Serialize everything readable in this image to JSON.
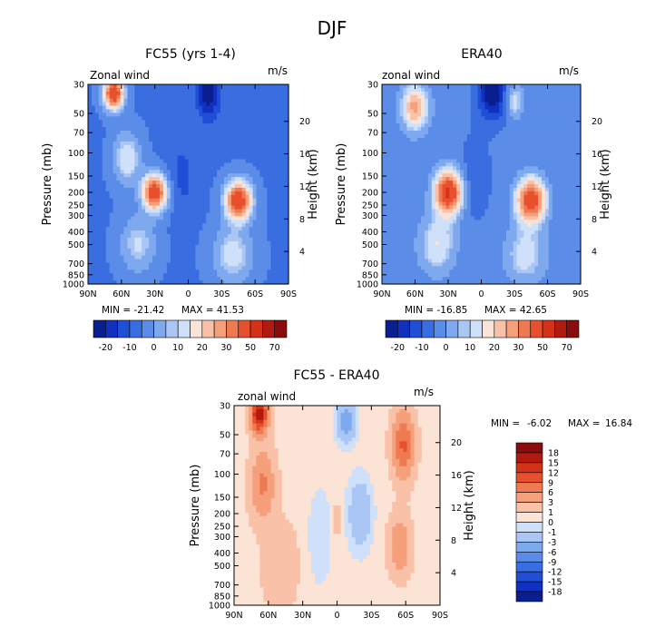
{
  "figure": {
    "title": "DJF"
  },
  "chart_data": [
    {
      "type": "heatmap",
      "id": "fc55",
      "title": "FC55 (yrs 1-4)",
      "field_label": "Zonal wind",
      "units": "m/s",
      "ylabel": "Pressure (mb)",
      "y2label": "Height (km)",
      "x_ticks": [
        "90N",
        "60N",
        "30N",
        "0",
        "30S",
        "60S",
        "90S"
      ],
      "x_range": [
        90,
        -90
      ],
      "p_ticks": [
        "30",
        "50",
        "70",
        "100",
        "150",
        "200",
        "250",
        "300",
        "400",
        "500",
        "700",
        "850",
        "1000"
      ],
      "p_range_mb": [
        30,
        1000
      ],
      "z_ticks": [
        "20",
        "16",
        "12",
        "8",
        "4"
      ],
      "min_label": "MIN = -21.42",
      "max_label": "MAX = 41.53",
      "min": -21.42,
      "max": 41.53,
      "background": -8,
      "features": [
        {
          "lat": 67,
          "p": 35,
          "amp": 48,
          "slat": 9,
          "slog": 0.28
        },
        {
          "lat": 55,
          "p": 110,
          "amp": 18,
          "slat": 12,
          "slog": 0.45
        },
        {
          "lat": 30,
          "p": 200,
          "amp": 45,
          "slat": 11,
          "slog": 0.32
        },
        {
          "lat": 45,
          "p": 500,
          "amp": 14,
          "slat": 16,
          "slog": 0.5
        },
        {
          "lat": -45,
          "p": 230,
          "amp": 46,
          "slat": 12,
          "slog": 0.34
        },
        {
          "lat": -40,
          "p": 600,
          "amp": 16,
          "slat": 18,
          "slog": 0.5
        },
        {
          "lat": -18,
          "p": 35,
          "amp": -18,
          "slat": 10,
          "slog": 0.45
        },
        {
          "lat": 5,
          "p": 150,
          "amp": -6,
          "slat": 12,
          "slog": 0.7
        }
      ]
    },
    {
      "type": "heatmap",
      "id": "era40",
      "title": "ERA40",
      "field_label": "zonal wind",
      "units": "m/s",
      "ylabel": "Pressure (mb)",
      "y2label": "Height (km)",
      "x_ticks": [
        "90N",
        "60N",
        "30N",
        "0",
        "30S",
        "60S",
        "90S"
      ],
      "x_range": [
        90,
        -90
      ],
      "p_ticks": [
        "30",
        "50",
        "70",
        "100",
        "150",
        "200",
        "250",
        "300",
        "400",
        "500",
        "700",
        "850",
        "1000"
      ],
      "p_range_mb": [
        30,
        1000
      ],
      "z_ticks": [
        "20",
        "16",
        "12",
        "8",
        "4"
      ],
      "min_label": "MIN = -16.85",
      "max_label": "MAX = 42.65",
      "min": -16.85,
      "max": 42.65,
      "background": -6,
      "features": [
        {
          "lat": 60,
          "p": 45,
          "amp": 28,
          "slat": 12,
          "slog": 0.4
        },
        {
          "lat": 30,
          "p": 200,
          "amp": 48,
          "slat": 12,
          "slog": 0.38
        },
        {
          "lat": 40,
          "p": 500,
          "amp": 16,
          "slat": 16,
          "slog": 0.5
        },
        {
          "lat": -45,
          "p": 230,
          "amp": 44,
          "slat": 13,
          "slog": 0.38
        },
        {
          "lat": -40,
          "p": 600,
          "amp": 14,
          "slat": 18,
          "slog": 0.5
        },
        {
          "lat": -10,
          "p": 35,
          "amp": -22,
          "slat": 12,
          "slog": 0.45
        },
        {
          "lat": -30,
          "p": 40,
          "amp": 14,
          "slat": 8,
          "slog": 0.3
        },
        {
          "lat": 5,
          "p": 150,
          "amp": -6,
          "slat": 12,
          "slog": 0.7
        }
      ]
    },
    {
      "type": "heatmap",
      "id": "diff",
      "title": "FC55 - ERA40",
      "field_label": "zonal wind",
      "units": "m/s",
      "ylabel": "Pressure (mb)",
      "y2label": "Height (km)",
      "x_ticks": [
        "90N",
        "60N",
        "30N",
        "0",
        "30S",
        "60S",
        "90S"
      ],
      "x_range": [
        90,
        -90
      ],
      "p_ticks": [
        "30",
        "50",
        "70",
        "100",
        "150",
        "200",
        "250",
        "300",
        "400",
        "500",
        "700",
        "850",
        "1000"
      ],
      "p_range_mb": [
        30,
        1000
      ],
      "z_ticks": [
        "20",
        "16",
        "12",
        "8",
        "4"
      ],
      "min_label": "MIN =",
      "min_value": "-6.02",
      "max_label": "MAX =",
      "max_value": "16.84",
      "min": -6.02,
      "max": 16.84,
      "background": 0.5,
      "features": [
        {
          "lat": 68,
          "p": 35,
          "amp": 17,
          "slat": 7,
          "slog": 0.3
        },
        {
          "lat": 65,
          "p": 120,
          "amp": 6,
          "slat": 10,
          "slog": 0.6
        },
        {
          "lat": 50,
          "p": 500,
          "amp": 2.5,
          "slat": 14,
          "slog": 0.7
        },
        {
          "lat": -58,
          "p": 60,
          "amp": 9,
          "slat": 9,
          "slog": 0.55
        },
        {
          "lat": -55,
          "p": 350,
          "amp": 5,
          "slat": 9,
          "slog": 0.5
        },
        {
          "lat": -20,
          "p": 200,
          "amp": -3.5,
          "slat": 10,
          "slog": 0.6
        },
        {
          "lat": -8,
          "p": 40,
          "amp": -5,
          "slat": 8,
          "slog": 0.35
        },
        {
          "lat": 15,
          "p": 300,
          "amp": -1.5,
          "slat": 10,
          "slog": 0.8
        },
        {
          "lat": 0,
          "p": 220,
          "amp": 2.5,
          "slat": 4,
          "slog": 0.25
        }
      ]
    }
  ],
  "colorbars": {
    "main": {
      "tick_labels": [
        "-20",
        "-10",
        "0",
        "10",
        "20",
        "30",
        "50",
        "70"
      ],
      "colors": [
        "#0a1f8f",
        "#1030c0",
        "#1e4fd6",
        "#3a6ee0",
        "#5b8de8",
        "#7fa9ef",
        "#a9c6f4",
        "#cfe0fa",
        "#fbe3d6",
        "#f9c2a8",
        "#f59f7b",
        "#ef7a52",
        "#e8502d",
        "#d53118",
        "#b01a0f",
        "#8a0c0c"
      ]
    },
    "diff": {
      "labels": [
        "18",
        "15",
        "12",
        "9",
        "6",
        "3",
        "1",
        "0",
        "-1",
        "-3",
        "-6",
        "-9",
        "-12",
        "-15",
        "-18"
      ],
      "colors": [
        "#8a0c0c",
        "#b01a0f",
        "#d53118",
        "#e8502d",
        "#ef7a52",
        "#f59f7b",
        "#f9c2a8",
        "#fbe3d6",
        "#cfe0fa",
        "#a9c6f4",
        "#7fa9ef",
        "#5b8de8",
        "#3a6ee0",
        "#1e4fd6",
        "#1030c0",
        "#0a1f8f"
      ],
      "levels": [
        18,
        15,
        12,
        9,
        6,
        3,
        1,
        0,
        -1,
        -3,
        -6,
        -9,
        -12,
        -15,
        -18
      ]
    }
  }
}
